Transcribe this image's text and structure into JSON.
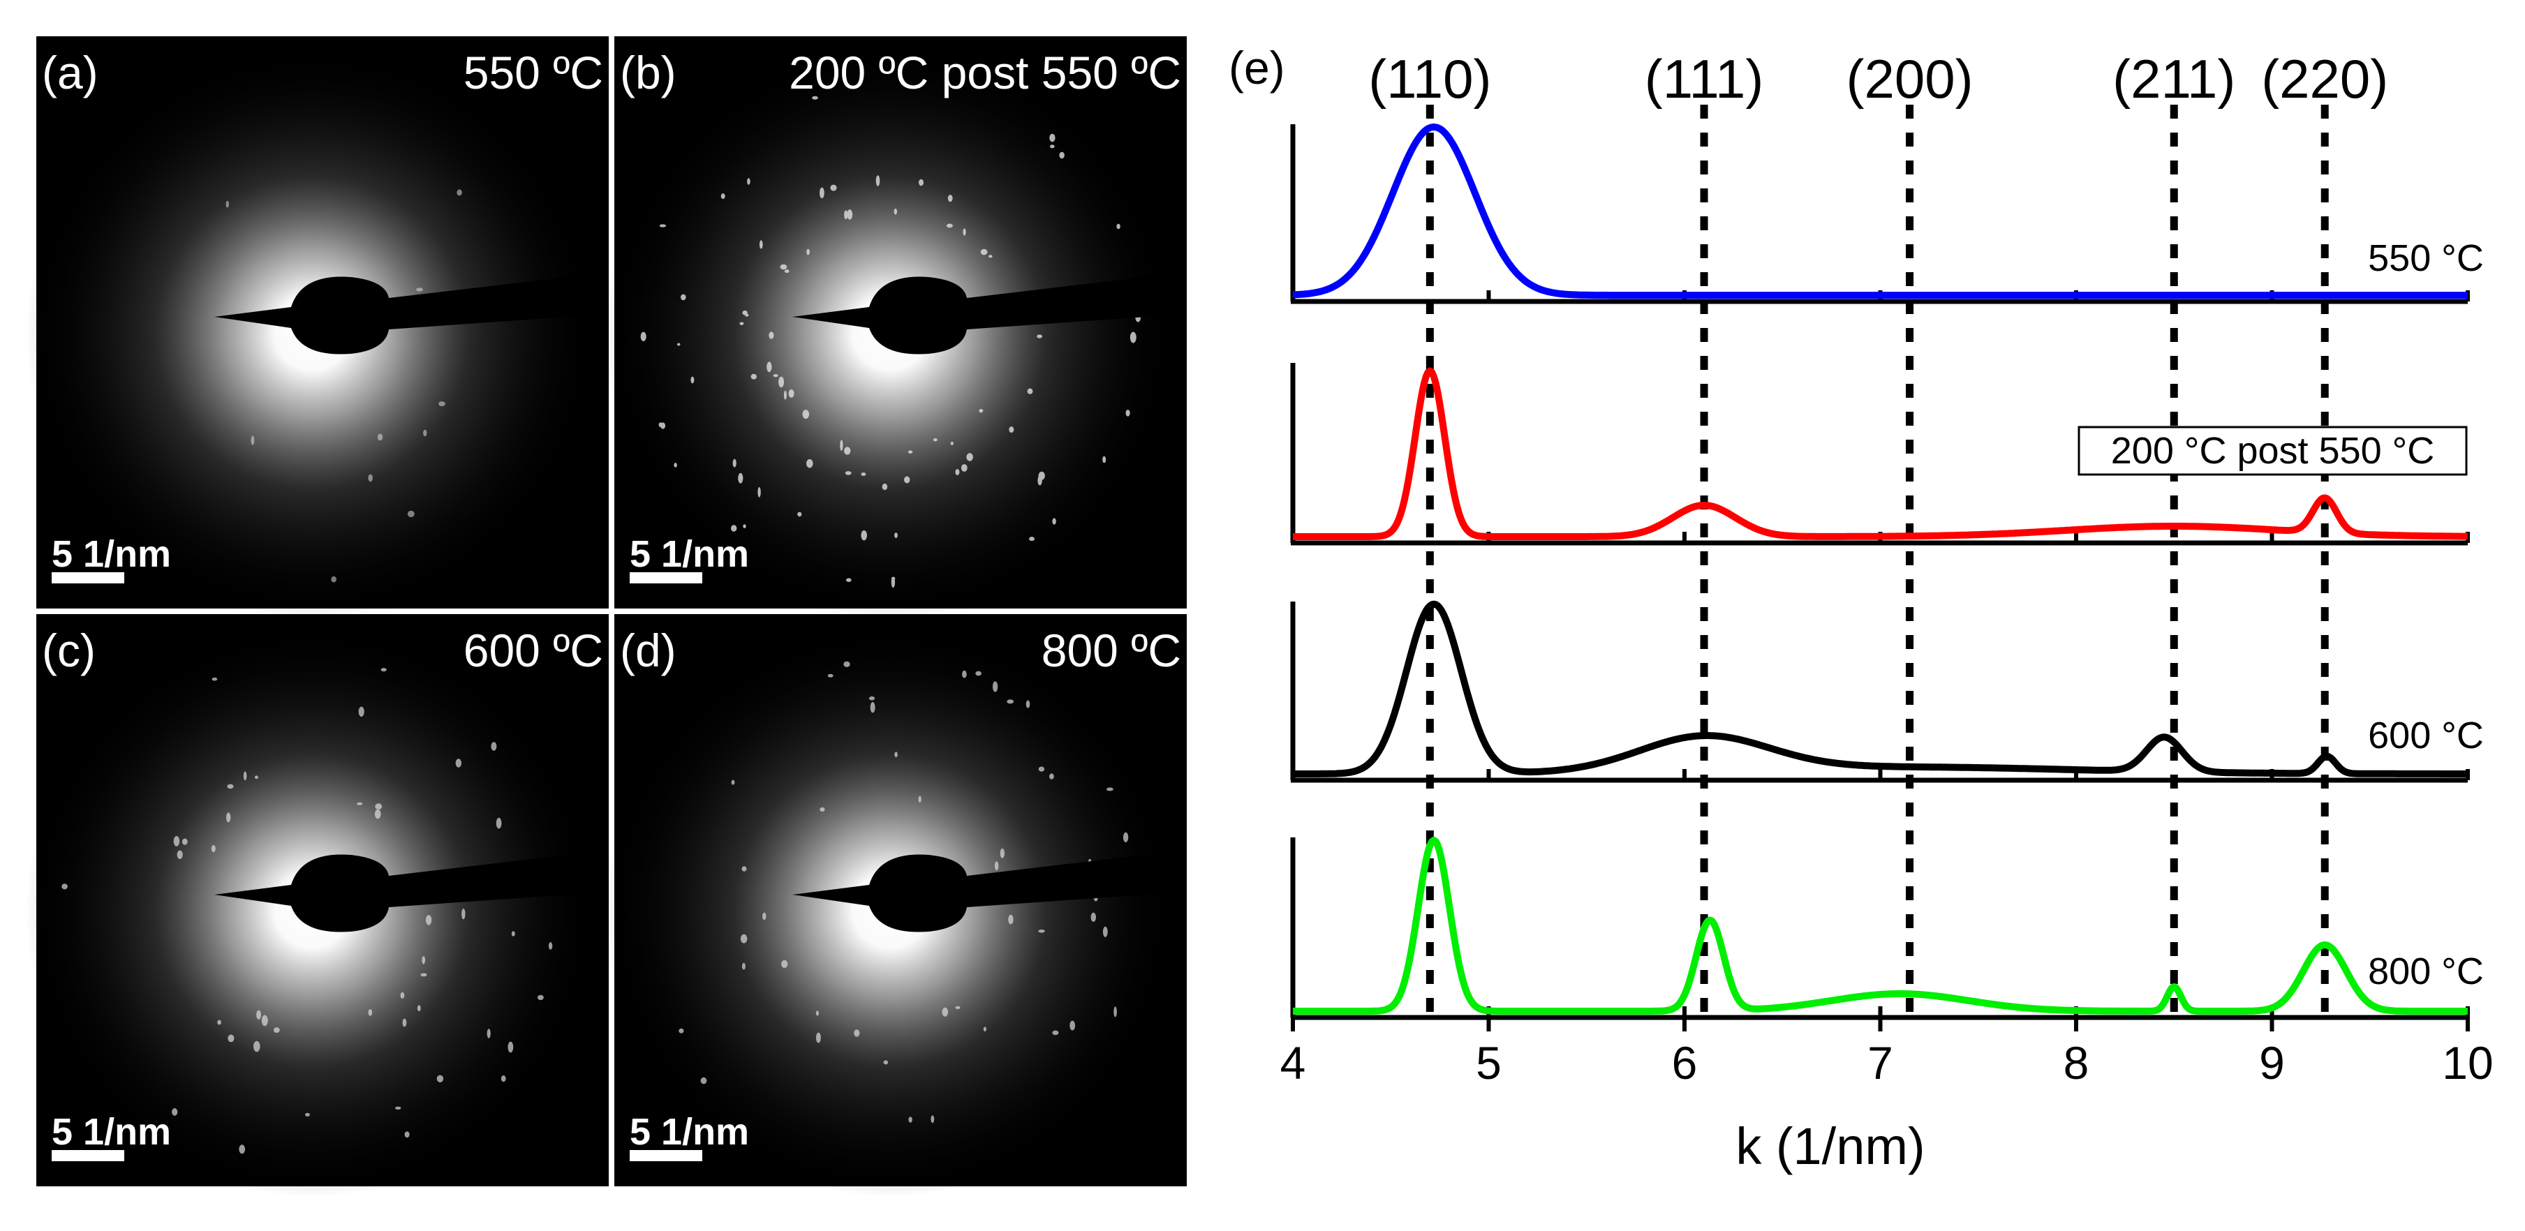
{
  "panels": [
    {
      "id": "a",
      "label": "(a)",
      "temperature": "550 ºC",
      "scalebar": "5 1/nm"
    },
    {
      "id": "b",
      "label": "(b)",
      "temperature": "200 ºC post 550 ºC",
      "scalebar": "5 1/nm"
    },
    {
      "id": "c",
      "label": "(c)",
      "temperature": "600 ºC",
      "scalebar": "5 1/nm"
    },
    {
      "id": "d",
      "label": "(d)",
      "temperature": "800 ºC",
      "scalebar": "5 1/nm"
    }
  ],
  "chart_data": {
    "type": "line",
    "panel_label": "(e)",
    "xlabel": "k (1/nm)",
    "xlim": [
      4,
      10
    ],
    "xticks": [
      4,
      5,
      6,
      7,
      8,
      9,
      10
    ],
    "grid": false,
    "reflections": [
      {
        "label": "(110)",
        "k": 4.7
      },
      {
        "label": "(111)",
        "k": 6.1
      },
      {
        "label": "(200)",
        "k": 7.15
      },
      {
        "label": "(211)",
        "k": 8.5
      },
      {
        "label": "(220)",
        "k": 9.27
      }
    ],
    "series": [
      {
        "name": "550 °C",
        "color": "#0000ff",
        "boxed": false,
        "baseline": 0.02,
        "peaks": [
          {
            "k": 4.72,
            "height": 0.98,
            "width": 0.21
          }
        ],
        "broad": []
      },
      {
        "name": "200 °C post 550 °C",
        "color": "#ff0000",
        "boxed": true,
        "baseline": 0.02,
        "peaks": [
          {
            "k": 4.7,
            "height": 0.95,
            "width": 0.075
          },
          {
            "k": 6.1,
            "height": 0.18,
            "width": 0.16
          },
          {
            "k": 9.27,
            "height": 0.2,
            "width": 0.06
          }
        ],
        "broad": [
          {
            "k": 8.5,
            "height": 0.06,
            "width": 0.55
          }
        ]
      },
      {
        "name": "600 °C",
        "color": "#000000",
        "boxed": false,
        "baseline": 0.02,
        "peaks": [
          {
            "k": 4.72,
            "height": 0.98,
            "width": 0.14
          },
          {
            "k": 8.45,
            "height": 0.2,
            "width": 0.09
          },
          {
            "k": 9.28,
            "height": 0.1,
            "width": 0.045
          }
        ],
        "broad": [
          {
            "k": 6.1,
            "height": 0.2,
            "width": 0.33
          },
          {
            "k": 7.1,
            "height": 0.04,
            "width": 0.9
          }
        ]
      },
      {
        "name": "800 °C",
        "color": "#00ee00",
        "boxed": false,
        "baseline": 0.02,
        "peaks": [
          {
            "k": 4.72,
            "height": 0.98,
            "width": 0.08
          },
          {
            "k": 6.13,
            "height": 0.52,
            "width": 0.07
          },
          {
            "k": 8.5,
            "height": 0.14,
            "width": 0.035
          },
          {
            "k": 9.27,
            "height": 0.38,
            "width": 0.11
          }
        ],
        "broad": [
          {
            "k": 7.1,
            "height": 0.1,
            "width": 0.35
          }
        ]
      }
    ]
  }
}
